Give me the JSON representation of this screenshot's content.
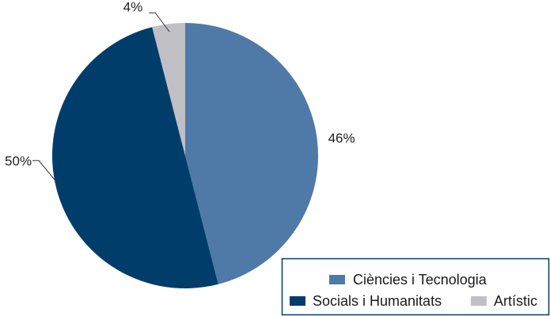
{
  "chart_data": {
    "type": "pie",
    "categories": [
      "Ciències i Tecnologia",
      "Socials i Humanitats",
      "Artístic"
    ],
    "values": [
      46,
      50,
      4
    ],
    "labels": [
      "46%",
      "50%",
      "4%"
    ],
    "colors": [
      "#4f79a7",
      "#003d6b",
      "#c0c0c4"
    ],
    "start_angle_deg": 0,
    "direction": "clockwise",
    "legend": {
      "placement": "bottom-right",
      "entries": [
        "Ciències i Tecnologia",
        "Socials i Humanitats",
        "Artístic"
      ]
    }
  }
}
